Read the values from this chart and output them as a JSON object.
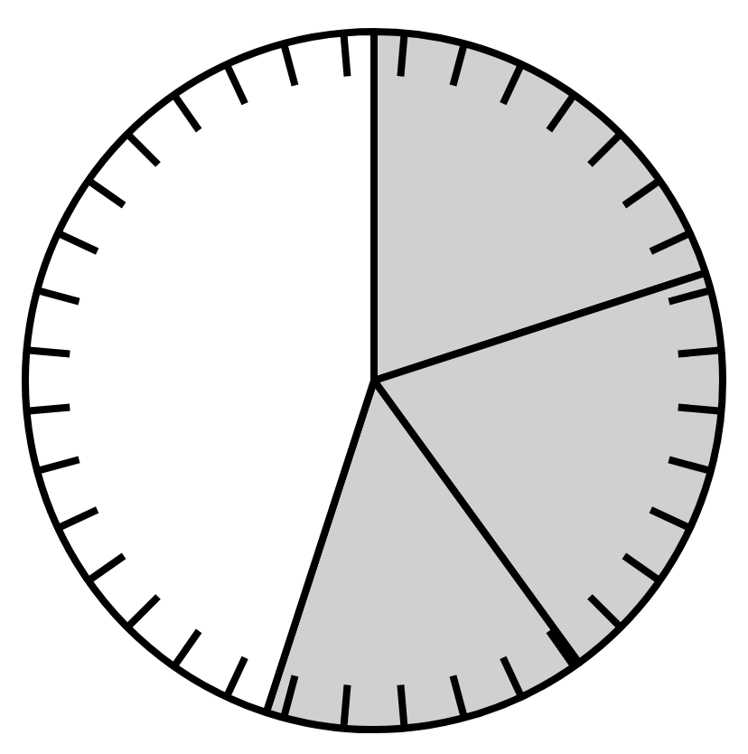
{
  "chart_data": {
    "type": "pie",
    "categories": [
      null,
      null,
      null,
      null
    ],
    "values": [
      20,
      20,
      15,
      45
    ],
    "colors": [
      "#d0d0d0",
      "#d0d0d0",
      "#d0d0d0",
      "#ffffff"
    ],
    "legend": false
  }
}
